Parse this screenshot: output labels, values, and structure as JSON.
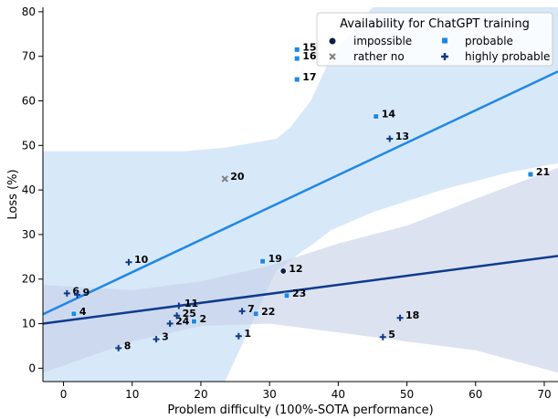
{
  "chart_data": {
    "type": "scatter",
    "xlabel": "Problem difficulty (100%-SOTA performance)",
    "ylabel": "Loss (%)",
    "xlim": [
      -3,
      72
    ],
    "ylim": [
      -3,
      81
    ],
    "x_ticks": [
      0,
      10,
      20,
      30,
      40,
      50,
      60,
      70
    ],
    "y_ticks": [
      0,
      10,
      20,
      30,
      40,
      50,
      60,
      70,
      80
    ],
    "grid": false,
    "legend": {
      "title": "Availability for ChatGPT training",
      "position": "top-right",
      "entries": [
        {
          "label": "impossible",
          "marker": "circle",
          "color": "#0b1f4a"
        },
        {
          "label": "probable",
          "marker": "square",
          "color": "#1e88e5"
        },
        {
          "label": "rather no",
          "marker": "x",
          "color": "#808080"
        },
        {
          "label": "highly probable",
          "marker": "plus",
          "color": "#0d3b8c"
        }
      ]
    },
    "points": [
      {
        "label": "1",
        "x": 25.5,
        "y": 7.2,
        "category": "highly probable"
      },
      {
        "label": "2",
        "x": 19,
        "y": 10.5,
        "category": "probable"
      },
      {
        "label": "3",
        "x": 13.5,
        "y": 6.5,
        "category": "highly probable"
      },
      {
        "label": "4",
        "x": 1.5,
        "y": 12.2,
        "category": "probable"
      },
      {
        "label": "5",
        "x": 46.5,
        "y": 7,
        "category": "highly probable"
      },
      {
        "label": "6",
        "x": 0.5,
        "y": 16.8,
        "category": "highly probable"
      },
      {
        "label": "7",
        "x": 26,
        "y": 12.8,
        "category": "highly probable"
      },
      {
        "label": "8",
        "x": 8,
        "y": 4.5,
        "category": "highly probable"
      },
      {
        "label": "9",
        "x": 2,
        "y": 16.5,
        "category": "highly probable"
      },
      {
        "label": "10",
        "x": 9.5,
        "y": 23.8,
        "category": "highly probable"
      },
      {
        "label": "11",
        "x": 16.8,
        "y": 14,
        "category": "highly probable"
      },
      {
        "label": "12",
        "x": 32,
        "y": 21.8,
        "category": "impossible"
      },
      {
        "label": "13",
        "x": 47.5,
        "y": 51.5,
        "category": "highly probable"
      },
      {
        "label": "14",
        "x": 45.5,
        "y": 56.5,
        "category": "probable"
      },
      {
        "label": "15",
        "x": 34,
        "y": 71.5,
        "category": "probable"
      },
      {
        "label": "16",
        "x": 34,
        "y": 69.5,
        "category": "probable"
      },
      {
        "label": "17",
        "x": 34,
        "y": 64.8,
        "category": "probable"
      },
      {
        "label": "18",
        "x": 49,
        "y": 11.3,
        "category": "highly probable"
      },
      {
        "label": "19",
        "x": 29,
        "y": 24,
        "category": "probable"
      },
      {
        "label": "20",
        "x": 23.5,
        "y": 42.5,
        "category": "rather no"
      },
      {
        "label": "21",
        "x": 68,
        "y": 43.5,
        "category": "probable"
      },
      {
        "label": "22",
        "x": 28,
        "y": 12.2,
        "category": "probable"
      },
      {
        "label": "23",
        "x": 32.5,
        "y": 16.3,
        "category": "probable"
      },
      {
        "label": "24",
        "x": 15.5,
        "y": 10,
        "category": "highly probable"
      },
      {
        "label": "25",
        "x": 16.5,
        "y": 11.8,
        "category": "highly probable"
      }
    ],
    "regression_lines": [
      {
        "name": "probable",
        "color": "#1e88e5",
        "x": [
          -3,
          72
        ],
        "y": [
          12.1,
          66.6
        ]
      },
      {
        "name": "highly probable",
        "color": "#0d3b8c",
        "x": [
          -3,
          72
        ],
        "y": [
          10.0,
          25.2
        ]
      }
    ],
    "confidence_bands": [
      {
        "name": "probable",
        "color": "#bcd9f5",
        "x": [
          -3,
          17.5,
          23.5,
          31,
          33,
          34.5,
          36,
          39,
          45,
          55,
          65,
          72
        ],
        "upper": [
          48.7,
          48.7,
          49.5,
          51.5,
          54,
          57,
          60,
          70,
          81,
          81,
          81,
          81
        ],
        "lower": [
          -3,
          -3,
          -3,
          22,
          24,
          26,
          27.5,
          31,
          35,
          40,
          44,
          46
        ]
      },
      {
        "name": "highly probable",
        "color": "#c6cfe8",
        "x": [
          -3,
          10,
          20,
          30,
          40,
          50,
          60,
          72
        ],
        "upper": [
          18.7,
          17.5,
          19.5,
          23,
          28,
          32,
          38,
          45
        ],
        "lower": [
          -1,
          6,
          9.5,
          10,
          8,
          6,
          4,
          -1
        ]
      }
    ]
  }
}
